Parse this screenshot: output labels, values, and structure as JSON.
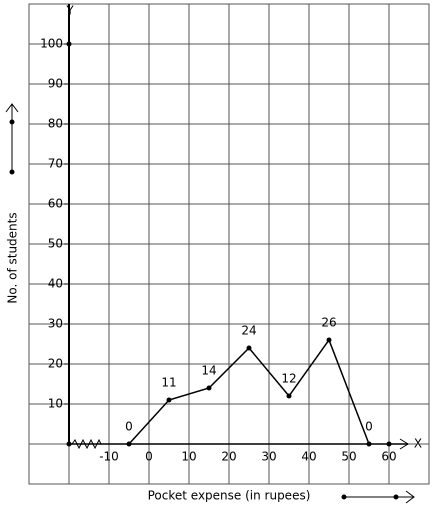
{
  "chart_data": {
    "type": "line",
    "x_label": "Pocket expense (in rupees)",
    "y_label": "No. of students",
    "x_axis_name": "X",
    "y_axis_name": "Y",
    "x": [
      -5,
      5,
      15,
      25,
      35,
      45,
      55
    ],
    "values": [
      0,
      11,
      14,
      24,
      12,
      26,
      0
    ],
    "color": "#000000",
    "xlim": [
      -30,
      70
    ],
    "ylim": [
      -10,
      110
    ],
    "xticks": [
      -10,
      0,
      10,
      20,
      30,
      40,
      50,
      60
    ],
    "yticks": [
      10,
      20,
      30,
      40,
      50,
      60,
      70,
      80,
      90,
      100
    ],
    "grid": true
  }
}
